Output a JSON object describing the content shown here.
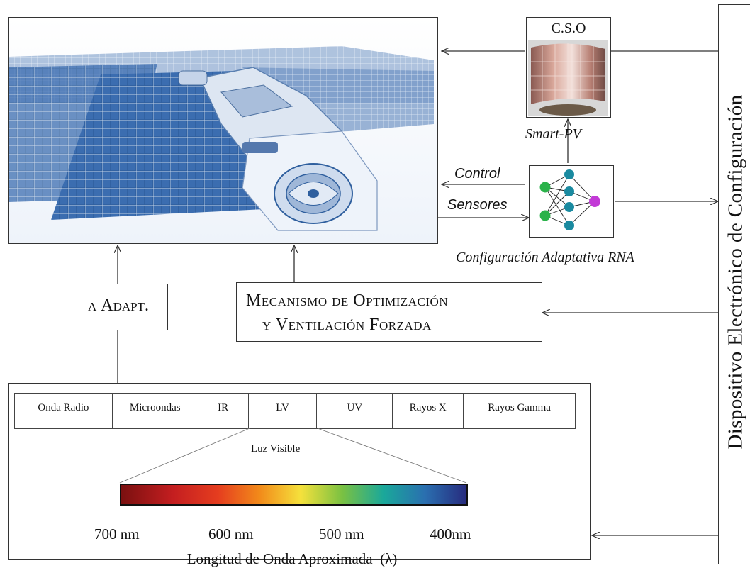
{
  "top_right": {
    "title": "C.S.O",
    "caption": "Smart-PV"
  },
  "nn": {
    "caption": "Configuración Adaptativa RNA",
    "control_label": "Control",
    "sensors_label": "Sensores"
  },
  "mechanism": {
    "line1": "Mecanismo de Optimización",
    "line2": "y Ventilación Forzada"
  },
  "lambda": {
    "label": "λ Adapt."
  },
  "device": {
    "label": "Dispositivo Electrónico de Configuración"
  },
  "spectrum": {
    "bands": [
      "Onda Radio",
      "Microondas",
      "IR",
      "LV",
      "UV",
      "Rayos X",
      "Rayos Gamma"
    ],
    "visible_label": "Luz Visible",
    "ticks": [
      "700 nm",
      "600 nm",
      "500 nm",
      "400nm"
    ],
    "axis_label": "Longitud de Onda Aproximada  (λ)"
  },
  "colors": {
    "panel_blue": "#2f5f9e",
    "light_blue": "#c7d7ec",
    "nn_green": "#2ab24a",
    "nn_teal": "#1a8aa0",
    "nn_purple": "#c23ad6"
  }
}
